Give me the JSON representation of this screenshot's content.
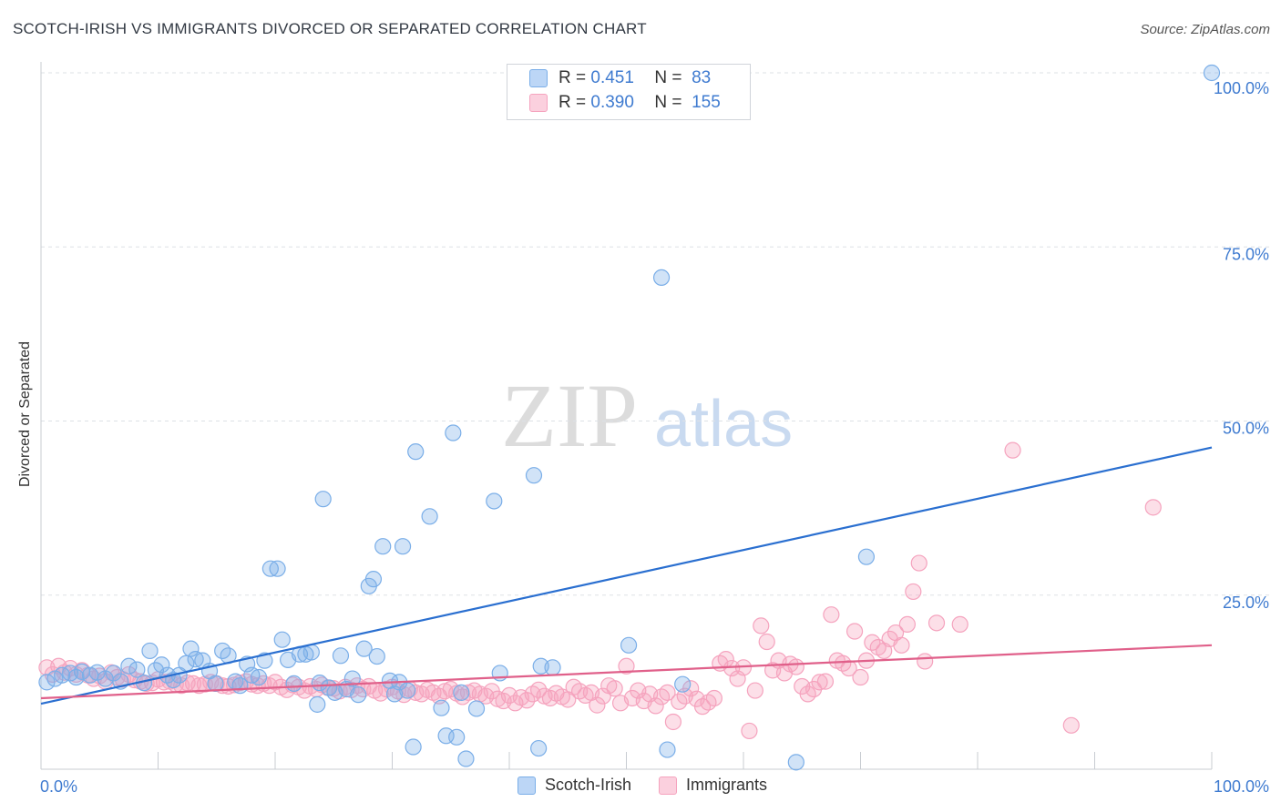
{
  "header": {
    "title": "SCOTCH-IRISH VS IMMIGRANTS DIVORCED OR SEPARATED CORRELATION CHART",
    "source": "Source: ZipAtlas.com"
  },
  "watermark": {
    "zip": "ZIP",
    "atlas": "atlas"
  },
  "legend_top": {
    "rows": [
      {
        "r_label": "R =",
        "r_value": "0.451",
        "n_label": "N =",
        "n_value": "83",
        "color": "#7aaee8"
      },
      {
        "r_label": "R =",
        "r_value": "0.390",
        "n_label": "N =",
        "n_value": "155",
        "color": "#f5a3be"
      }
    ]
  },
  "legend_bottom": {
    "items": [
      {
        "label": "Scotch-Irish",
        "color": "#7aaee8"
      },
      {
        "label": "Immigrants",
        "color": "#f5a3be"
      }
    ]
  },
  "chart_data": {
    "type": "scatter",
    "title": "SCOTCH-IRISH VS IMMIGRANTS DIVORCED OR SEPARATED CORRELATION CHART",
    "xlabel": "",
    "ylabel": "Divorced or Separated",
    "xlim": [
      0,
      100
    ],
    "ylim": [
      0,
      100
    ],
    "x_tick_labels": [
      "0.0%",
      "100.0%"
    ],
    "y_tick_labels": [
      "25.0%",
      "50.0%",
      "75.0%",
      "100.0%"
    ],
    "y_ticks": [
      25,
      50,
      75,
      100
    ],
    "grid": "horizontal dashed",
    "legend_position": "top-center and bottom",
    "series": [
      {
        "name": "Scotch-Irish",
        "color": "#7aaee8",
        "line_color": "#2a6fd0",
        "trend": {
          "x": [
            0,
            100
          ],
          "y": [
            9.4,
            46.2
          ]
        },
        "points": [
          [
            0.5,
            12.5
          ],
          [
            1.2,
            13.0
          ],
          [
            1.8,
            13.5
          ],
          [
            2.5,
            13.8
          ],
          [
            3.0,
            13.2
          ],
          [
            3.5,
            14.0
          ],
          [
            4.2,
            13.5
          ],
          [
            4.8,
            13.9
          ],
          [
            5.5,
            13.0
          ],
          [
            6.2,
            13.8
          ],
          [
            6.8,
            12.6
          ],
          [
            7.5,
            14.8
          ],
          [
            8.2,
            14.3
          ],
          [
            8.8,
            12.4
          ],
          [
            9.3,
            17.0
          ],
          [
            9.8,
            14.2
          ],
          [
            10.3,
            15.0
          ],
          [
            10.8,
            13.5
          ],
          [
            11.3,
            12.8
          ],
          [
            11.8,
            13.5
          ],
          [
            12.4,
            15.2
          ],
          [
            12.8,
            17.3
          ],
          [
            13.2,
            15.8
          ],
          [
            13.8,
            15.6
          ],
          [
            14.4,
            14.1
          ],
          [
            14.9,
            12.3
          ],
          [
            15.5,
            17.0
          ],
          [
            16.0,
            16.3
          ],
          [
            16.6,
            12.6
          ],
          [
            17.0,
            12.0
          ],
          [
            17.6,
            15.1
          ],
          [
            18.0,
            13.5
          ],
          [
            18.6,
            13.2
          ],
          [
            19.1,
            15.6
          ],
          [
            19.6,
            28.8
          ],
          [
            20.2,
            28.8
          ],
          [
            20.6,
            18.6
          ],
          [
            21.1,
            15.7
          ],
          [
            21.6,
            12.3
          ],
          [
            22.1,
            16.5
          ],
          [
            22.6,
            16.5
          ],
          [
            23.1,
            16.8
          ],
          [
            23.6,
            9.3
          ],
          [
            23.8,
            12.4
          ],
          [
            24.1,
            38.8
          ],
          [
            24.6,
            11.7
          ],
          [
            25.1,
            11.0
          ],
          [
            25.6,
            16.3
          ],
          [
            26.1,
            11.5
          ],
          [
            26.6,
            13.0
          ],
          [
            27.1,
            10.7
          ],
          [
            27.6,
            17.3
          ],
          [
            28.0,
            26.3
          ],
          [
            28.4,
            27.3
          ],
          [
            28.7,
            16.2
          ],
          [
            29.2,
            32.0
          ],
          [
            29.8,
            12.7
          ],
          [
            30.2,
            10.8
          ],
          [
            30.6,
            12.5
          ],
          [
            30.9,
            32.0
          ],
          [
            31.3,
            11.3
          ],
          [
            31.8,
            3.2
          ],
          [
            32.0,
            45.6
          ],
          [
            33.2,
            36.3
          ],
          [
            34.2,
            8.8
          ],
          [
            34.6,
            4.8
          ],
          [
            35.2,
            48.3
          ],
          [
            35.5,
            4.6
          ],
          [
            35.9,
            11.0
          ],
          [
            36.3,
            1.5
          ],
          [
            37.2,
            8.7
          ],
          [
            38.7,
            38.5
          ],
          [
            39.2,
            13.8
          ],
          [
            42.1,
            42.2
          ],
          [
            42.5,
            3.0
          ],
          [
            42.7,
            14.8
          ],
          [
            43.7,
            14.6
          ],
          [
            50.2,
            17.8
          ],
          [
            53.0,
            70.6
          ],
          [
            53.5,
            2.8
          ],
          [
            54.8,
            12.2
          ],
          [
            64.5,
            1.0
          ],
          [
            70.5,
            30.5
          ],
          [
            100.0,
            100.0
          ]
        ]
      },
      {
        "name": "Immigrants",
        "color": "#f5a3be",
        "line_color": "#e0608a",
        "trend": {
          "x": [
            0,
            100
          ],
          "y": [
            10.2,
            17.8
          ]
        },
        "points": [
          [
            0.5,
            14.6
          ],
          [
            1.0,
            13.6
          ],
          [
            1.5,
            14.8
          ],
          [
            2.0,
            13.9
          ],
          [
            2.5,
            14.5
          ],
          [
            3.0,
            13.6
          ],
          [
            3.5,
            14.2
          ],
          [
            4.0,
            13.5
          ],
          [
            4.5,
            13.0
          ],
          [
            5.0,
            13.4
          ],
          [
            5.5,
            12.6
          ],
          [
            6.0,
            13.9
          ],
          [
            6.5,
            13.2
          ],
          [
            7.0,
            12.9
          ],
          [
            7.5,
            13.6
          ],
          [
            8.0,
            12.8
          ],
          [
            8.5,
            12.6
          ],
          [
            9.0,
            12.3
          ],
          [
            9.5,
            12.4
          ],
          [
            10.0,
            12.9
          ],
          [
            10.5,
            12.5
          ],
          [
            11.0,
            12.6
          ],
          [
            11.5,
            12.2
          ],
          [
            12.0,
            12.0
          ],
          [
            12.5,
            12.4
          ],
          [
            13.0,
            12.3
          ],
          [
            13.5,
            12.0
          ],
          [
            14.0,
            12.2
          ],
          [
            14.5,
            12.5
          ],
          [
            15.0,
            12.3
          ],
          [
            15.5,
            12.0
          ],
          [
            16.0,
            11.9
          ],
          [
            16.5,
            12.1
          ],
          [
            17.0,
            12.4
          ],
          [
            17.5,
            12.6
          ],
          [
            18.0,
            12.2
          ],
          [
            18.5,
            12.0
          ],
          [
            19.0,
            12.3
          ],
          [
            19.5,
            12.0
          ],
          [
            20.0,
            12.5
          ],
          [
            20.5,
            11.8
          ],
          [
            21.0,
            11.4
          ],
          [
            21.5,
            12.1
          ],
          [
            22.0,
            11.8
          ],
          [
            22.5,
            11.3
          ],
          [
            23.0,
            11.9
          ],
          [
            23.5,
            11.5
          ],
          [
            24.0,
            12.1
          ],
          [
            24.5,
            11.7
          ],
          [
            25.0,
            11.6
          ],
          [
            25.5,
            11.2
          ],
          [
            26.0,
            11.8
          ],
          [
            26.5,
            11.4
          ],
          [
            27.0,
            12.0
          ],
          [
            27.5,
            11.5
          ],
          [
            28.0,
            11.9
          ],
          [
            28.5,
            11.3
          ],
          [
            29.0,
            10.9
          ],
          [
            29.5,
            11.5
          ],
          [
            30.0,
            11.8
          ],
          [
            30.5,
            11.2
          ],
          [
            31.0,
            10.7
          ],
          [
            31.5,
            11.5
          ],
          [
            32.0,
            11.0
          ],
          [
            32.5,
            10.8
          ],
          [
            33.0,
            11.4
          ],
          [
            33.5,
            11.0
          ],
          [
            34.0,
            10.5
          ],
          [
            34.5,
            11.2
          ],
          [
            35.0,
            11.5
          ],
          [
            35.5,
            10.9
          ],
          [
            36.0,
            10.4
          ],
          [
            36.5,
            11.0
          ],
          [
            37.0,
            11.3
          ],
          [
            37.5,
            10.8
          ],
          [
            38.0,
            10.5
          ],
          [
            38.5,
            11.2
          ],
          [
            39.0,
            10.1
          ],
          [
            39.5,
            9.8
          ],
          [
            40.0,
            10.6
          ],
          [
            40.5,
            9.5
          ],
          [
            41.0,
            10.3
          ],
          [
            41.5,
            9.9
          ],
          [
            42.0,
            10.8
          ],
          [
            42.5,
            11.4
          ],
          [
            43.0,
            10.5
          ],
          [
            43.5,
            10.2
          ],
          [
            44.0,
            10.9
          ],
          [
            44.5,
            10.4
          ],
          [
            45.0,
            10.0
          ],
          [
            45.5,
            11.8
          ],
          [
            46.0,
            11.2
          ],
          [
            46.5,
            10.6
          ],
          [
            47.0,
            11.0
          ],
          [
            47.5,
            9.2
          ],
          [
            48.0,
            10.5
          ],
          [
            48.5,
            12.0
          ],
          [
            49.0,
            11.6
          ],
          [
            49.5,
            9.5
          ],
          [
            50.0,
            14.8
          ],
          [
            50.5,
            10.2
          ],
          [
            51.0,
            11.3
          ],
          [
            51.5,
            9.8
          ],
          [
            52.0,
            10.8
          ],
          [
            52.5,
            9.1
          ],
          [
            53.0,
            10.4
          ],
          [
            53.5,
            11.0
          ],
          [
            54.0,
            6.8
          ],
          [
            54.5,
            9.7
          ],
          [
            55.0,
            10.5
          ],
          [
            55.5,
            11.6
          ],
          [
            56.0,
            10.1
          ],
          [
            56.5,
            9.0
          ],
          [
            57.0,
            9.6
          ],
          [
            57.5,
            10.2
          ],
          [
            58.0,
            15.2
          ],
          [
            58.5,
            15.8
          ],
          [
            59.0,
            14.5
          ],
          [
            59.5,
            13.0
          ],
          [
            60.0,
            14.6
          ],
          [
            60.5,
            5.5
          ],
          [
            61.0,
            11.3
          ],
          [
            61.5,
            20.6
          ],
          [
            62.0,
            18.3
          ],
          [
            62.5,
            14.2
          ],
          [
            63.0,
            15.6
          ],
          [
            63.5,
            13.8
          ],
          [
            64.0,
            15.1
          ],
          [
            64.5,
            14.7
          ],
          [
            65.0,
            11.9
          ],
          [
            65.5,
            10.8
          ],
          [
            66.0,
            11.5
          ],
          [
            66.5,
            12.5
          ],
          [
            67.0,
            12.6
          ],
          [
            67.5,
            22.2
          ],
          [
            68.0,
            15.6
          ],
          [
            68.5,
            15.2
          ],
          [
            69.0,
            14.5
          ],
          [
            69.5,
            19.8
          ],
          [
            70.0,
            13.2
          ],
          [
            70.5,
            15.6
          ],
          [
            71.0,
            18.2
          ],
          [
            71.5,
            17.5
          ],
          [
            72.0,
            17.0
          ],
          [
            72.5,
            18.7
          ],
          [
            73.0,
            19.6
          ],
          [
            73.5,
            17.8
          ],
          [
            74.0,
            20.8
          ],
          [
            74.5,
            25.5
          ],
          [
            75.0,
            29.6
          ],
          [
            75.5,
            15.5
          ],
          [
            76.5,
            21.0
          ],
          [
            78.5,
            20.8
          ],
          [
            83.0,
            45.8
          ],
          [
            88.0,
            6.3
          ],
          [
            95.0,
            37.6
          ]
        ]
      }
    ]
  }
}
